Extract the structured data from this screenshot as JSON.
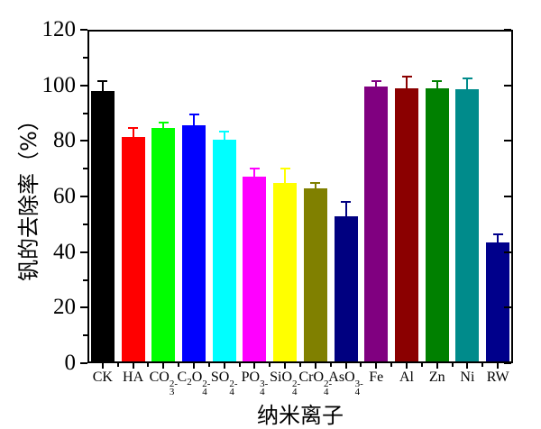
{
  "figure": {
    "background": "#FFFFFF",
    "frame_color": "#000000"
  },
  "chart_data": {
    "type": "bar",
    "title": "",
    "xlabel": "纳米离子",
    "ylabel": "钒的去除率（%）",
    "ylim": [
      0,
      120
    ],
    "ytick_major_step": 20,
    "ytick_minor_step": 10,
    "ytick_labels": [
      "0",
      "20",
      "40",
      "60",
      "80",
      "100",
      "120"
    ],
    "grid": false,
    "legend": "none",
    "categories": [
      "CK",
      "HA",
      "CO3(2-)",
      "C2O4(2-)",
      "SO4(2-)",
      "PO4(3-)",
      "SiO4(2-)",
      "CrO4(2-)",
      "AsO4(3-)",
      "Fe",
      "Al",
      "Zn",
      "Ni",
      "RW"
    ],
    "categories_rich": [
      [
        {
          "t": "CK"
        }
      ],
      [
        {
          "t": "HA"
        }
      ],
      [
        {
          "t": "CO"
        },
        {
          "stack": [
            "2-",
            "3"
          ]
        }
      ],
      [
        {
          "t": "C"
        },
        {
          "sub": "2"
        },
        {
          "t": "O"
        },
        {
          "stack": [
            "2-",
            "4"
          ]
        }
      ],
      [
        {
          "t": "SO"
        },
        {
          "stack": [
            "2-",
            "4"
          ]
        }
      ],
      [
        {
          "t": "PO"
        },
        {
          "stack": [
            "3-",
            "4"
          ]
        }
      ],
      [
        {
          "t": "SiO"
        },
        {
          "stack": [
            "2-",
            "4"
          ]
        }
      ],
      [
        {
          "t": "CrO"
        },
        {
          "stack": [
            "2-",
            "4"
          ]
        }
      ],
      [
        {
          "t": "AsO"
        },
        {
          "stack": [
            "3-",
            "4"
          ]
        }
      ],
      [
        {
          "t": "Fe"
        }
      ],
      [
        {
          "t": "Al"
        }
      ],
      [
        {
          "t": "Zn"
        }
      ],
      [
        {
          "t": "Ni"
        }
      ],
      [
        {
          "t": "RW"
        }
      ]
    ],
    "values": [
      98,
      81.5,
      84.5,
      85.5,
      80.5,
      67,
      65,
      63,
      53,
      99.5,
      99,
      99,
      98.5,
      43.5
    ],
    "errors": [
      3.5,
      3,
      2,
      4,
      3,
      3,
      5,
      2,
      5,
      2,
      4,
      2.5,
      4,
      3
    ],
    "bar_colors": [
      "#000000",
      "#FF0000",
      "#00FF00",
      "#0000FF",
      "#00FFFF",
      "#FF00FF",
      "#FFFF00",
      "#808000",
      "#000080",
      "#800080",
      "#8B0000",
      "#008000",
      "#008B8B",
      "#00008B"
    ]
  }
}
